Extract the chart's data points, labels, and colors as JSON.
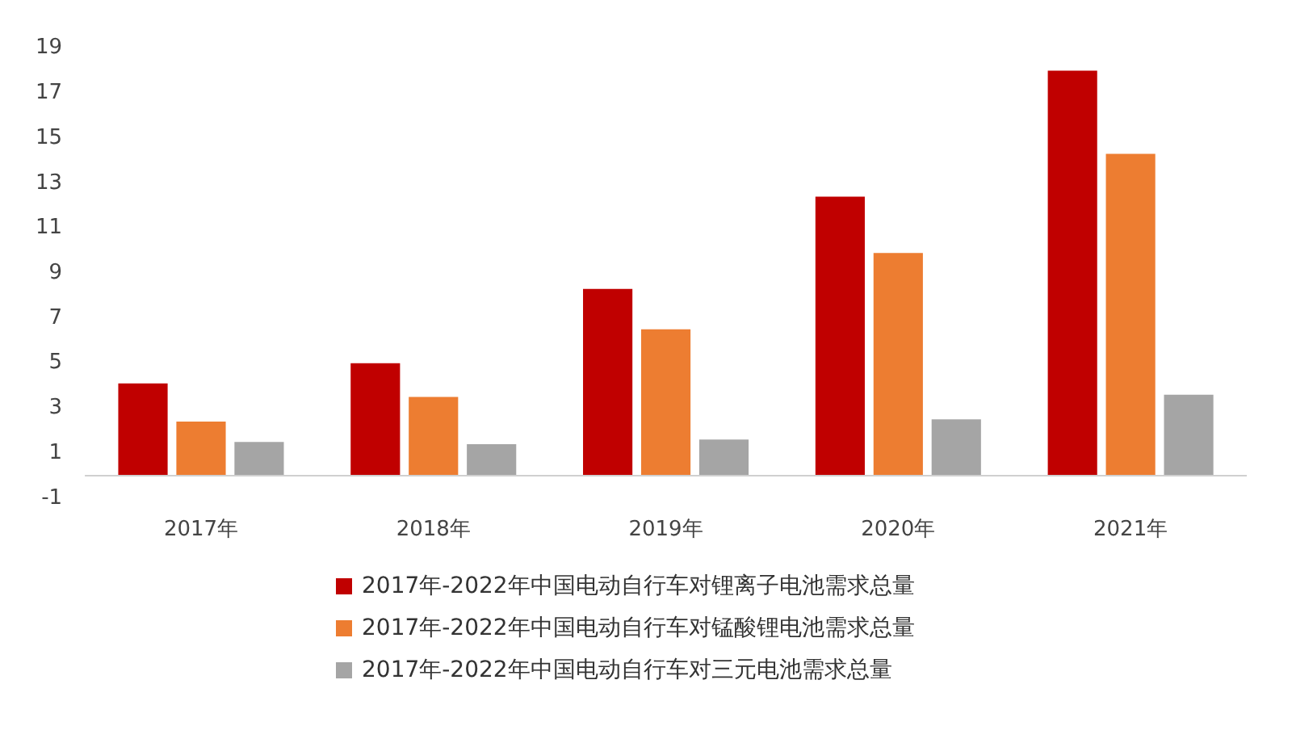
{
  "chart_data": {
    "type": "bar",
    "categories": [
      "2017年",
      "2018年",
      "2019年",
      "2020年",
      "2021年"
    ],
    "series": [
      {
        "name": "2017年-2022年中国电动自行车对锂离子电池需求总量",
        "color": "#c00000",
        "values": [
          4.1,
          5.0,
          8.3,
          12.4,
          18.0
        ]
      },
      {
        "name": "2017年-2022年中国电动自行车对锰酸锂电池需求总量",
        "color": "#ed7d31",
        "values": [
          2.4,
          3.5,
          6.5,
          9.9,
          14.3
        ]
      },
      {
        "name": "2017年-2022年中国电动自行车对三元电池需求总量",
        "color": "#a5a5a5",
        "values": [
          1.5,
          1.4,
          1.6,
          2.5,
          3.6
        ]
      }
    ],
    "ylim": [
      -1,
      19
    ],
    "yticks": [
      -1,
      1,
      3,
      5,
      7,
      9,
      11,
      13,
      15,
      17,
      19
    ],
    "grid": false,
    "legend": "bottom"
  }
}
